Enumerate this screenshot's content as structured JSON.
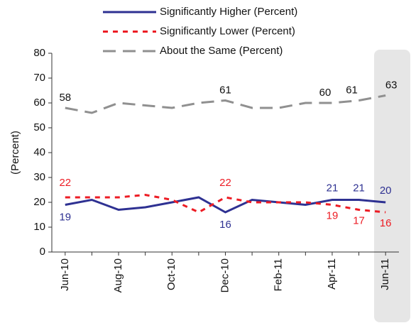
{
  "chart_data": {
    "type": "line",
    "y_label": "(Percent)",
    "categories": [
      "Jun-10",
      null,
      "Aug-10",
      null,
      "Oct-10",
      null,
      "Dec-10",
      null,
      "Feb-11",
      null,
      "Apr-11",
      null,
      "Jun-11"
    ],
    "series": [
      {
        "name": "Significantly Higher (Percent)",
        "color": "#2e3192",
        "values": [
          19,
          21,
          17,
          18,
          20,
          22,
          16,
          21,
          20,
          19,
          21,
          21,
          20
        ],
        "value_labels": [
          "19",
          null,
          null,
          null,
          null,
          null,
          "16",
          null,
          null,
          null,
          "21",
          "21",
          "20"
        ]
      },
      {
        "name": "Significantly Lower (Percent)",
        "color": "#ed1c24",
        "values": [
          22,
          22,
          22,
          23,
          21,
          16,
          22,
          20,
          20,
          20,
          19,
          17,
          16
        ],
        "value_labels": [
          "22",
          null,
          null,
          null,
          null,
          null,
          "22",
          null,
          null,
          null,
          "19",
          "17",
          "16"
        ]
      },
      {
        "name": "About the Same (Percent)",
        "color": "#909090",
        "values": [
          58,
          56,
          60,
          59,
          58,
          60,
          61,
          58,
          58,
          60,
          60,
          61,
          63
        ],
        "value_labels": [
          "58",
          null,
          null,
          null,
          null,
          null,
          "61",
          null,
          null,
          null,
          "60",
          "61",
          "63"
        ]
      }
    ],
    "ylim": [
      0,
      80
    ],
    "yticks": [
      0,
      10,
      20,
      30,
      40,
      50,
      60,
      70,
      80
    ]
  }
}
